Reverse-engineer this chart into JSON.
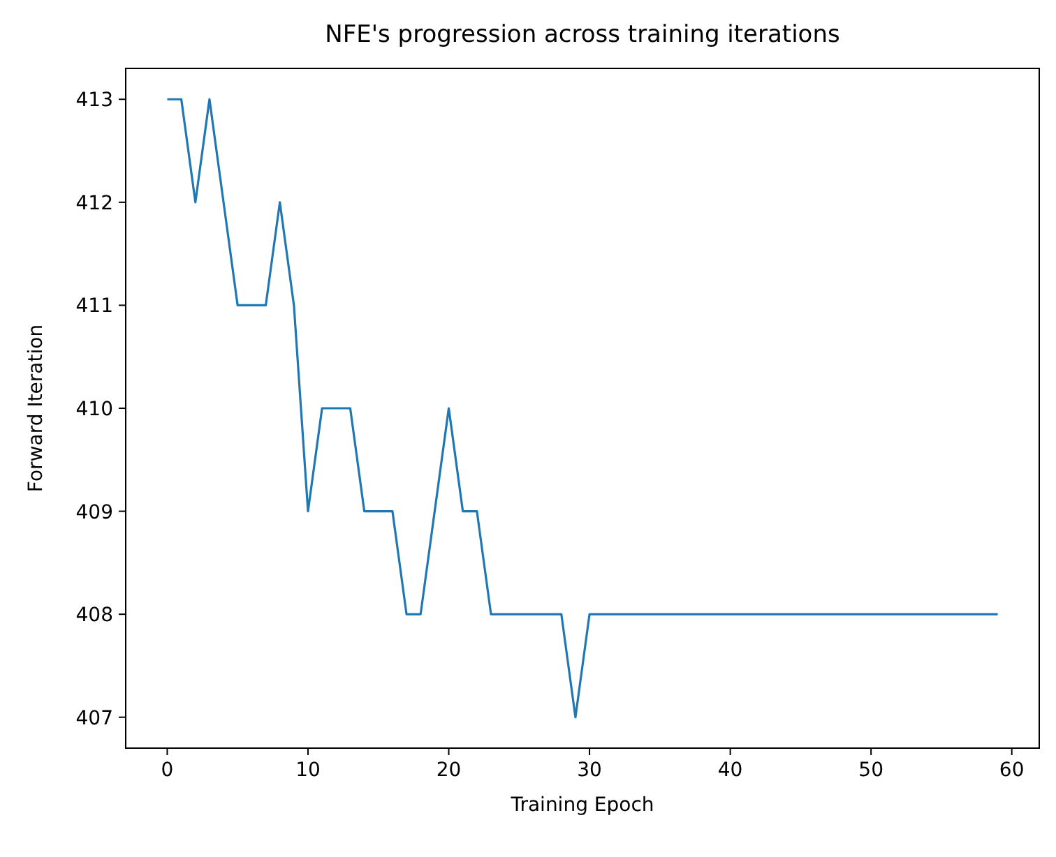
{
  "chart_data": {
    "type": "line",
    "title": "NFE's progression across training iterations",
    "xlabel": "Training Epoch",
    "ylabel": "Forward Iteration",
    "x": [
      0,
      1,
      2,
      3,
      4,
      5,
      6,
      7,
      8,
      9,
      10,
      11,
      12,
      13,
      14,
      15,
      16,
      17,
      18,
      19,
      20,
      21,
      22,
      23,
      24,
      25,
      26,
      27,
      28,
      29,
      30,
      31,
      32,
      33,
      34,
      35,
      36,
      37,
      38,
      39,
      40,
      41,
      42,
      43,
      44,
      45,
      46,
      47,
      48,
      49,
      50,
      51,
      52,
      53,
      54,
      55,
      56,
      57,
      58,
      59
    ],
    "series": [
      {
        "color": "#1f77b4",
        "values": [
          413,
          413,
          412,
          413,
          412,
          411,
          411,
          411,
          412,
          411,
          409,
          410,
          410,
          410,
          409,
          409,
          409,
          408,
          408,
          409,
          410,
          409,
          409,
          408,
          408,
          408,
          408,
          408,
          408,
          407,
          408,
          408,
          408,
          408,
          408,
          408,
          408,
          408,
          408,
          408,
          408,
          408,
          408,
          408,
          408,
          408,
          408,
          408,
          408,
          408,
          408,
          408,
          408,
          408,
          408,
          408,
          408,
          408,
          408,
          408
        ]
      }
    ],
    "xlim": [
      -2.95,
      61.95
    ],
    "ylim": [
      406.7,
      413.3
    ],
    "xticks": [
      0,
      10,
      20,
      30,
      40,
      50,
      60
    ],
    "yticks": [
      407,
      408,
      409,
      410,
      411,
      412,
      413
    ],
    "grid": false,
    "marker": "none",
    "line_style": "solid"
  }
}
